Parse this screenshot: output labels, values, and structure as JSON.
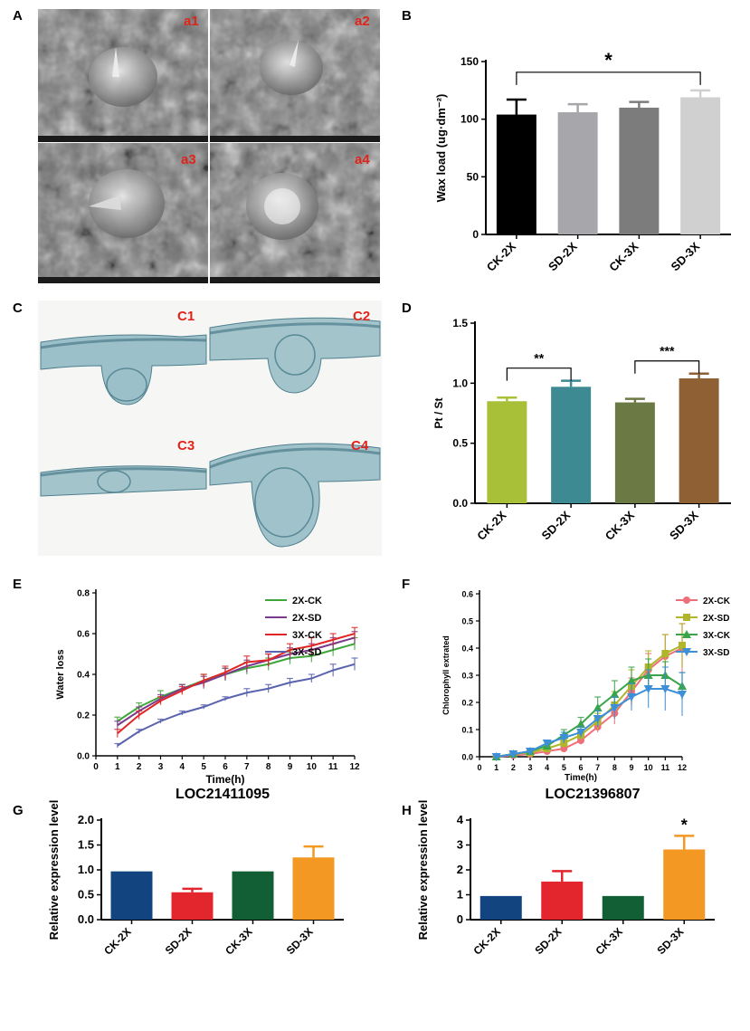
{
  "panels": {
    "A": {
      "letter": "A",
      "subs": [
        "a1",
        "a2",
        "a3",
        "a4"
      ]
    },
    "C": {
      "letter": "C",
      "subs": [
        "C1",
        "C2",
        "C3",
        "C4"
      ]
    }
  },
  "chart_data": [
    {
      "id": "B",
      "letter": "B",
      "type": "bar",
      "title": "",
      "categories": [
        "CK-2X",
        "SD-2X",
        "CK-3X",
        "SD-3X"
      ],
      "values": [
        104,
        106,
        110,
        119
      ],
      "errors": [
        13,
        7,
        5,
        6
      ],
      "colors": [
        "#000000",
        "#a7a7ab",
        "#7c7c7c",
        "#d0d0d0"
      ],
      "ylabel": "Wax load (ug·dm⁻²)",
      "ylim": [
        0,
        150
      ],
      "yticks": [
        "0",
        "50",
        "100",
        "150"
      ],
      "annotations": [
        {
          "from": 0,
          "to": 3,
          "text": "*"
        }
      ]
    },
    {
      "id": "D",
      "letter": "D",
      "type": "bar",
      "title": "",
      "categories": [
        "CK-2X",
        "SD-2X",
        "CK-3X",
        "SD-3X"
      ],
      "values": [
        0.85,
        0.97,
        0.84,
        1.04
      ],
      "errors": [
        0.03,
        0.05,
        0.03,
        0.04
      ],
      "colors": [
        "#a8c037",
        "#3e8a92",
        "#6b7945",
        "#8e6033"
      ],
      "ylabel": "Pt / St",
      "ylim": [
        0,
        1.5
      ],
      "yticks": [
        "0.0",
        "0.5",
        "1.0",
        "1.5"
      ],
      "annotations": [
        {
          "from": 0,
          "to": 1,
          "text": "**"
        },
        {
          "from": 2,
          "to": 3,
          "text": "***"
        }
      ]
    },
    {
      "id": "E",
      "letter": "E",
      "type": "line",
      "title": "",
      "x": [
        1,
        2,
        3,
        4,
        5,
        6,
        7,
        8,
        9,
        10,
        11,
        12
      ],
      "xlabel": "Time(h)",
      "ylabel": "Water loss",
      "xlim": [
        0,
        12
      ],
      "ylim": [
        0,
        0.8
      ],
      "xticks": [
        "0",
        "1",
        "2",
        "3",
        "4",
        "5",
        "6",
        "7",
        "8",
        "9",
        "10",
        "11",
        "12"
      ],
      "yticks": [
        "0.0",
        "0.2",
        "0.4",
        "0.6",
        "0.8"
      ],
      "series": [
        {
          "name": "2X-CK",
          "color": "#3fa63a",
          "marker": "none",
          "values": [
            0.17,
            0.24,
            0.29,
            0.33,
            0.37,
            0.4,
            0.43,
            0.45,
            0.48,
            0.49,
            0.52,
            0.55
          ],
          "errors": [
            0.02,
            0.02,
            0.03,
            0.02,
            0.03,
            0.03,
            0.03,
            0.03,
            0.03,
            0.03,
            0.03,
            0.03
          ]
        },
        {
          "name": "2X-SD",
          "color": "#7b3a8c",
          "marker": "none",
          "values": [
            0.15,
            0.22,
            0.28,
            0.33,
            0.36,
            0.4,
            0.44,
            0.47,
            0.5,
            0.52,
            0.55,
            0.58
          ],
          "errors": [
            0.02,
            0.02,
            0.02,
            0.02,
            0.03,
            0.03,
            0.03,
            0.03,
            0.03,
            0.03,
            0.03,
            0.03
          ]
        },
        {
          "name": "3X-CK",
          "color": "#e02525",
          "marker": "none",
          "values": [
            0.11,
            0.2,
            0.27,
            0.32,
            0.37,
            0.41,
            0.46,
            0.47,
            0.52,
            0.54,
            0.57,
            0.6
          ],
          "errors": [
            0.02,
            0.02,
            0.02,
            0.02,
            0.03,
            0.03,
            0.03,
            0.03,
            0.03,
            0.04,
            0.03,
            0.03
          ]
        },
        {
          "name": "3X-SD",
          "color": "#5a63ae",
          "marker": "none",
          "values": [
            0.05,
            0.12,
            0.17,
            0.21,
            0.24,
            0.28,
            0.31,
            0.33,
            0.36,
            0.38,
            0.42,
            0.45
          ],
          "errors": [
            0.01,
            0.01,
            0.01,
            0.01,
            0.01,
            0.01,
            0.02,
            0.02,
            0.02,
            0.02,
            0.03,
            0.03
          ]
        }
      ]
    },
    {
      "id": "F",
      "letter": "F",
      "type": "line",
      "title": "",
      "x": [
        1,
        2,
        3,
        4,
        5,
        6,
        7,
        8,
        9,
        10,
        11,
        12
      ],
      "xlabel": "Time(h)",
      "ylabel": "Chlorophyll extrated",
      "xlim": [
        0,
        12
      ],
      "ylim": [
        0,
        0.6
      ],
      "xticks": [
        "0",
        "1",
        "2",
        "3",
        "4",
        "5",
        "6",
        "7",
        "8",
        "9",
        "10",
        "11",
        "12"
      ],
      "yticks": [
        "0.0",
        "0.1",
        "0.2",
        "0.3",
        "0.4",
        "0.5",
        "0.6"
      ],
      "series": [
        {
          "name": "2X-CK",
          "color": "#ee6f7b",
          "marker": "circle",
          "values": [
            0.0,
            0.005,
            0.01,
            0.02,
            0.03,
            0.06,
            0.11,
            0.16,
            0.24,
            0.32,
            0.37,
            0.4
          ],
          "errors": [
            0.002,
            0.003,
            0.005,
            0.008,
            0.01,
            0.015,
            0.02,
            0.04,
            0.05,
            0.06,
            0.08,
            0.09
          ]
        },
        {
          "name": "2X-SD",
          "color": "#b1b52a",
          "marker": "square",
          "values": [
            0.0,
            0.01,
            0.015,
            0.03,
            0.05,
            0.08,
            0.13,
            0.19,
            0.26,
            0.33,
            0.38,
            0.41
          ],
          "errors": [
            0.002,
            0.004,
            0.006,
            0.01,
            0.015,
            0.02,
            0.03,
            0.05,
            0.06,
            0.06,
            0.07,
            0.08
          ]
        },
        {
          "name": "3X-CK",
          "color": "#3aa44a",
          "marker": "triangle-up",
          "values": [
            0.0,
            0.01,
            0.02,
            0.04,
            0.08,
            0.12,
            0.18,
            0.23,
            0.28,
            0.3,
            0.3,
            0.26
          ],
          "errors": [
            0.003,
            0.005,
            0.01,
            0.015,
            0.02,
            0.025,
            0.04,
            0.05,
            0.05,
            0.06,
            0.05,
            0.05
          ]
        },
        {
          "name": "3X-SD",
          "color": "#3d8fd8",
          "marker": "triangle-down",
          "values": [
            0.0,
            0.01,
            0.02,
            0.05,
            0.07,
            0.09,
            0.14,
            0.18,
            0.22,
            0.25,
            0.25,
            0.23
          ],
          "errors": [
            0.003,
            0.005,
            0.01,
            0.01,
            0.02,
            0.02,
            0.03,
            0.04,
            0.05,
            0.07,
            0.08,
            0.08
          ]
        }
      ]
    },
    {
      "id": "G",
      "letter": "G",
      "type": "bar",
      "title": "LOC21411095",
      "categories": [
        "CK-2X",
        "SD-2X",
        "CK-3X",
        "SD-3X"
      ],
      "values": [
        0.97,
        0.55,
        0.97,
        1.25
      ],
      "errors": [
        0,
        0.07,
        0,
        0.22
      ],
      "colors": [
        "#124580",
        "#e3252d",
        "#125f35",
        "#f29823"
      ],
      "ylabel": "Relative expression level",
      "ylim": [
        0,
        2.0
      ],
      "yticks": [
        "0.0",
        "0.5",
        "1.0",
        "1.5",
        "2.0"
      ],
      "annotations": []
    },
    {
      "id": "H",
      "letter": "H",
      "type": "bar",
      "title": "LOC21396807",
      "categories": [
        "CK-2X",
        "SD-2X",
        "CK-3X",
        "SD-3X"
      ],
      "values": [
        0.95,
        1.53,
        0.95,
        2.82
      ],
      "errors": [
        0,
        0.42,
        0,
        0.55
      ],
      "colors": [
        "#124580",
        "#e3252d",
        "#125f35",
        "#f29823"
      ],
      "ylabel": "Relative expression level",
      "ylim": [
        0,
        4
      ],
      "yticks": [
        "0",
        "1",
        "2",
        "3",
        "4"
      ],
      "annotations": [
        {
          "bar": 3,
          "text": "*"
        }
      ]
    }
  ]
}
